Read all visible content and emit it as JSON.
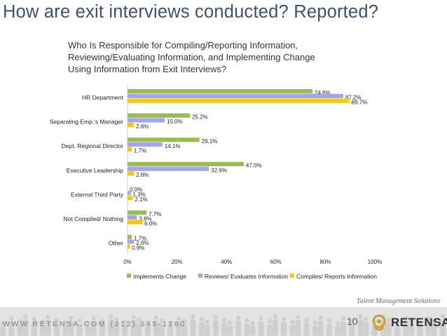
{
  "slide": {
    "title": "How are exit interviews conducted?  Reported?",
    "subtitle_lines": [
      "Who Is Responsible for Compiling/Reporting Information,",
      "Reviewing/Evaluating Information, and Implementing Change",
      "Using Information from Exit Interviews?"
    ]
  },
  "chart_data": {
    "type": "bar",
    "orientation": "horizontal",
    "categories": [
      "HR Department",
      "Separating Emp.'s Manager",
      "Dept. Regional Director",
      "Executive Leadership",
      "External Third Party",
      "Not Compiled/ Nothing",
      "Other"
    ],
    "series": [
      {
        "name": "Implements Change",
        "values": [
          74.8,
          25.2,
          29.1,
          47.0,
          0.0,
          7.7,
          1.7
        ],
        "labels": [
          "74.8%",
          "25.2%",
          "29.1%",
          "47.0%",
          "0.0%",
          "7.7%",
          "1.7%"
        ]
      },
      {
        "name": "Reviews/ Evaluates Information",
        "values": [
          87.2,
          15.0,
          14.1,
          32.9,
          1.3,
          3.8,
          2.6
        ],
        "labels": [
          "87.2%",
          "15.0%",
          "14.1%",
          "32.9%",
          "1.3%",
          "3.8%",
          "2.6%"
        ]
      },
      {
        "name": "Compiles/ Reports Information",
        "values": [
          89.7,
          2.6,
          1.7,
          2.6,
          2.1,
          6.0,
          0.9
        ],
        "labels": [
          "89.7%",
          "2.6%",
          "1.7%",
          "2.6%",
          "2.1%",
          "6.0%",
          "0.9%"
        ]
      }
    ],
    "x_ticks": [
      "0%",
      "20%",
      "40%",
      "60%",
      "80%",
      "100%"
    ],
    "xlim": [
      0,
      100
    ],
    "grid": false,
    "legend_position": "bottom",
    "colors": [
      "#9bbb59",
      "#a4a7e6",
      "#f5c518"
    ]
  },
  "footer": {
    "tagline": "Talent Management Solutions",
    "contact": "WWW.RETENSA.COM    (212) 545-1280",
    "page_number": "10",
    "brand": "RETENSA"
  }
}
